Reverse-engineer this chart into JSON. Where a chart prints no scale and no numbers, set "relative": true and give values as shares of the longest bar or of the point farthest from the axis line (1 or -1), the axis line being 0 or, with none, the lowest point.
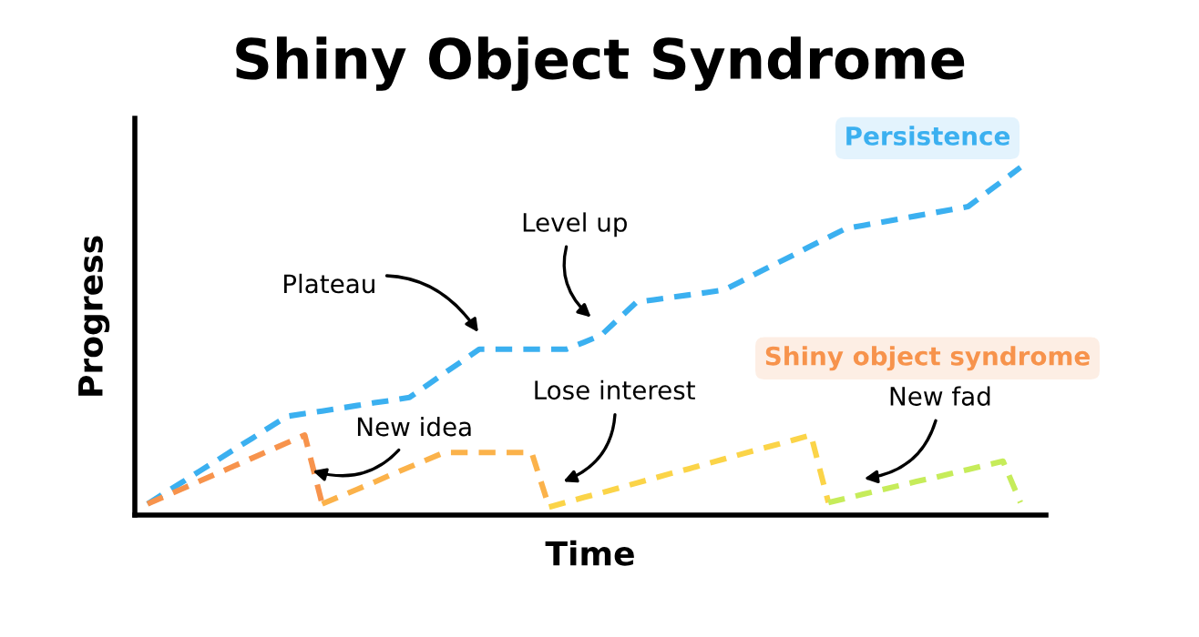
{
  "chart_data": {
    "type": "line",
    "title": "Shiny Object Syndrome",
    "xlabel": "Time",
    "ylabel": "Progress",
    "relative": true,
    "tick_labels": false,
    "line_style": "dashed",
    "marker": "none",
    "legend": false,
    "categories": [
      null,
      null,
      null,
      null,
      null,
      null,
      null,
      null,
      null,
      null,
      null,
      null,
      null,
      null,
      null,
      null,
      null,
      null,
      null,
      null,
      null,
      null,
      null,
      null,
      null,
      null,
      null,
      null,
      null,
      null,
      null,
      null,
      null,
      null,
      null,
      null,
      null,
      null,
      null,
      null,
      null,
      null,
      null,
      null,
      null,
      null,
      null,
      null,
      null,
      null,
      null
    ],
    "series": [
      {
        "name": "Persistence",
        "color": "#3bb0f0",
        "values": [
          0.032,
          0.064,
          0.095,
          0.127,
          0.158,
          0.19,
          0.221,
          0.253,
          0.284,
          0.292,
          0.299,
          0.307,
          0.315,
          0.323,
          0.33,
          0.338,
          0.373,
          0.408,
          0.442,
          0.477,
          0.477,
          0.477,
          0.477,
          0.477,
          0.477,
          0.497,
          0.518,
          0.565,
          0.612,
          0.619,
          0.626,
          0.633,
          0.64,
          0.647,
          0.672,
          0.698,
          0.723,
          0.748,
          0.774,
          0.799,
          0.824,
          0.833,
          0.842,
          0.851,
          0.86,
          0.869,
          0.878,
          0.887,
          0.925,
          0.962,
          1.0
        ]
      },
      {
        "name": "Shiny object syndrome",
        "color": "#f7934c",
        "values": [
          0.032,
          0.054,
          0.076,
          0.098,
          0.12,
          0.142,
          0.164,
          0.186,
          0.208,
          0.23,
          0.032,
          null,
          null,
          null,
          null,
          null,
          null,
          null,
          null,
          null,
          null,
          null,
          null,
          null,
          null,
          null,
          null,
          null,
          null,
          null,
          null,
          null,
          null,
          null,
          null,
          null,
          null,
          null,
          null,
          null,
          null,
          null,
          null,
          null,
          null,
          null,
          null,
          null,
          null,
          null,
          null
        ]
      },
      {
        "color": "#fbb24a",
        "values": [
          null,
          null,
          null,
          null,
          null,
          null,
          null,
          null,
          null,
          null,
          0.032,
          0.053,
          0.074,
          0.095,
          0.117,
          0.138,
          0.159,
          0.18,
          0.18,
          0.18,
          0.18,
          0.18,
          0.18,
          0.023,
          null,
          null,
          null,
          null,
          null,
          null,
          null,
          null,
          null,
          null,
          null,
          null,
          null,
          null,
          null,
          null,
          null,
          null,
          null,
          null,
          null,
          null,
          null,
          null,
          null,
          null,
          null
        ]
      },
      {
        "color": "#fbd448",
        "values": [
          null,
          null,
          null,
          null,
          null,
          null,
          null,
          null,
          null,
          null,
          null,
          null,
          null,
          null,
          null,
          null,
          null,
          null,
          null,
          null,
          null,
          null,
          null,
          0.023,
          0.037,
          0.051,
          0.064,
          0.078,
          0.092,
          0.106,
          0.12,
          0.133,
          0.147,
          0.161,
          0.175,
          0.189,
          0.202,
          0.216,
          0.23,
          0.036,
          null,
          null,
          null,
          null,
          null,
          null,
          null,
          null,
          null,
          null,
          null
        ]
      },
      {
        "color": "#c6ec5a",
        "values": [
          null,
          null,
          null,
          null,
          null,
          null,
          null,
          null,
          null,
          null,
          null,
          null,
          null,
          null,
          null,
          null,
          null,
          null,
          null,
          null,
          null,
          null,
          null,
          null,
          null,
          null,
          null,
          null,
          null,
          null,
          null,
          null,
          null,
          null,
          null,
          null,
          null,
          null,
          null,
          0.036,
          0.048,
          0.06,
          0.072,
          0.084,
          0.096,
          0.107,
          0.119,
          0.131,
          0.143,
          0.155,
          0.036
        ]
      }
    ],
    "annotations": [
      "Plateau",
      "Level up",
      "New idea",
      "Lose interest",
      "New fad"
    ]
  }
}
